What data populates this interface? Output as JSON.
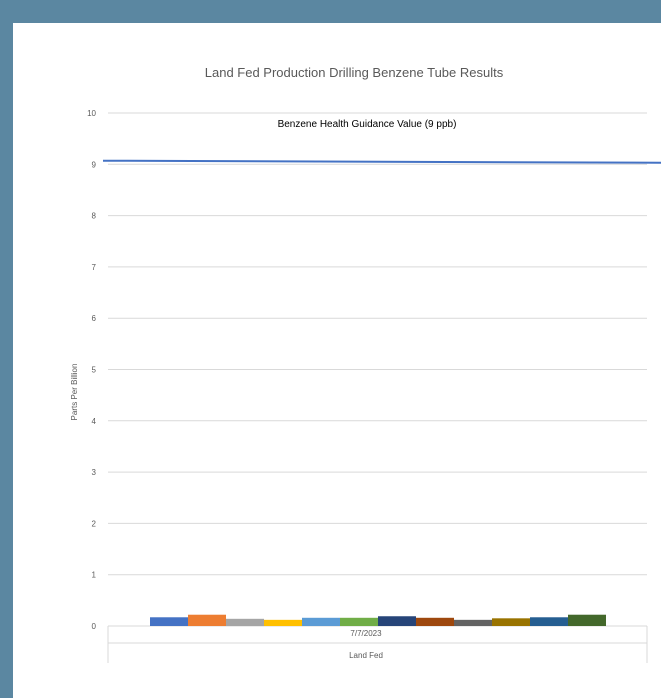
{
  "chart_data": {
    "type": "bar",
    "title": "Land Fed Production Drilling Benzene Tube Results",
    "ylabel": "Parts Per Billion",
    "ylim": [
      0,
      10
    ],
    "yticks": [
      0,
      1,
      2,
      3,
      4,
      5,
      6,
      7,
      8,
      9,
      10
    ],
    "grid": true,
    "categories": [
      "7/7/2023"
    ],
    "group_label": "Land Fed",
    "series": [
      {
        "values": [
          0.17
        ],
        "color": "#4472c4"
      },
      {
        "values": [
          0.22
        ],
        "color": "#ed7d31"
      },
      {
        "values": [
          0.14
        ],
        "color": "#a5a5a5"
      },
      {
        "values": [
          0.12
        ],
        "color": "#ffc000"
      },
      {
        "values": [
          0.16
        ],
        "color": "#5b9bd5"
      },
      {
        "values": [
          0.16
        ],
        "color": "#70ad47"
      },
      {
        "values": [
          0.19
        ],
        "color": "#264478"
      },
      {
        "values": [
          0.16
        ],
        "color": "#9e480e"
      },
      {
        "values": [
          0.12
        ],
        "color": "#636363"
      },
      {
        "values": [
          0.15
        ],
        "color": "#997300"
      },
      {
        "values": [
          0.17
        ],
        "color": "#255e91"
      },
      {
        "values": [
          0.22
        ],
        "color": "#43682b"
      }
    ],
    "reference_line": {
      "label": "Benzene Health Guidance Value (9 ppb)",
      "start_value": 9.07,
      "end_value": 9.03,
      "color": "#4472c4"
    }
  }
}
